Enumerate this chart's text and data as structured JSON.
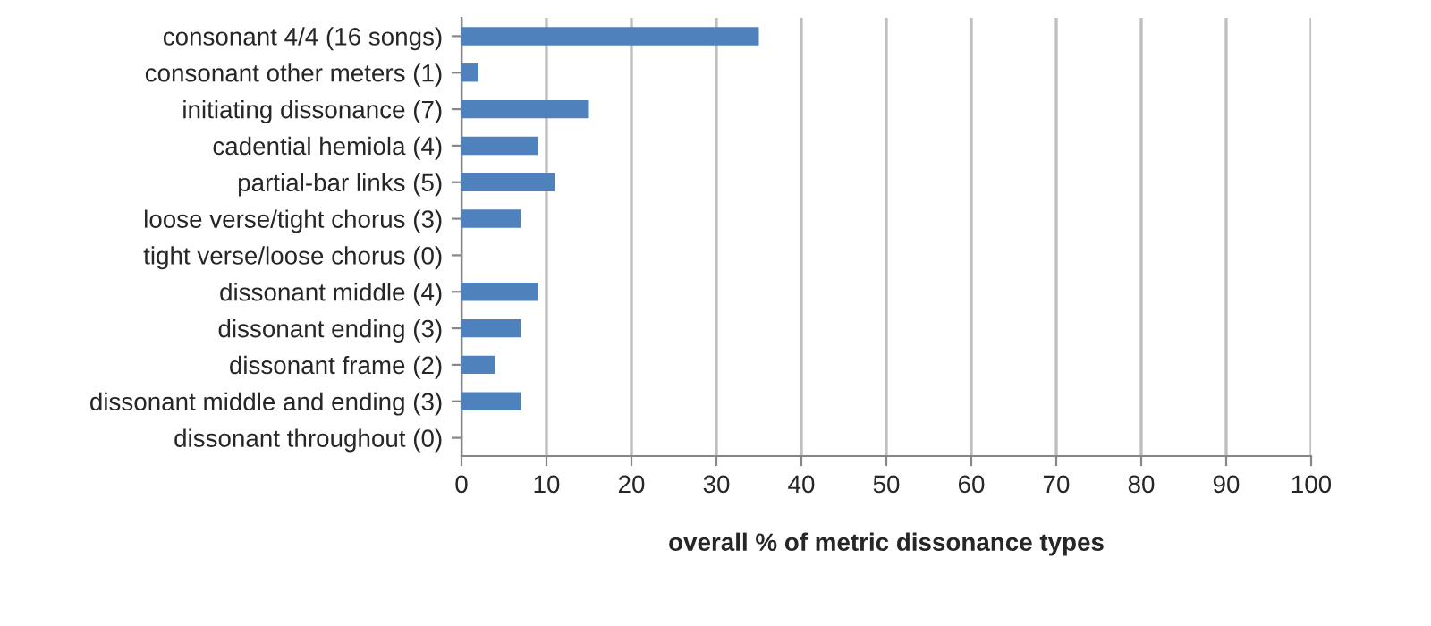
{
  "chart_data": {
    "type": "bar",
    "orientation": "horizontal",
    "xlabel": "overall % of metric dissonance types",
    "categories": [
      "consonant 4/4 (16 songs)",
      "consonant other meters (1)",
      "initiating dissonance (7)",
      "cadential hemiola (4)",
      "partial-bar links (5)",
      "loose verse/tight chorus (3)",
      "tight verse/loose chorus (0)",
      "dissonant middle (4)",
      "dissonant ending (3)",
      "dissonant frame (2)",
      "dissonant middle and ending (3)",
      "dissonant throughout (0)"
    ],
    "values": [
      35,
      2,
      15,
      9,
      11,
      7,
      0,
      9,
      7,
      4,
      7,
      0
    ],
    "color": "#4f81bd",
    "xlim": [
      0,
      100
    ],
    "xticks": [
      0,
      10,
      20,
      30,
      40,
      50,
      60,
      70,
      80,
      90,
      100
    ],
    "grid": "x"
  }
}
